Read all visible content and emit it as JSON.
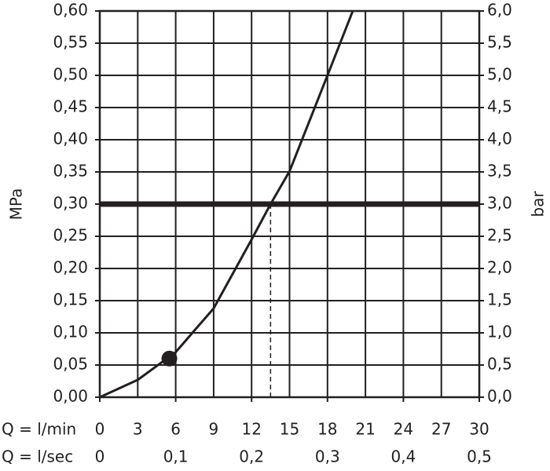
{
  "chart_data": {
    "type": "line",
    "x_label": "Q = l/min",
    "x2_label": "Q = l/sec",
    "y_label": "MPa",
    "y2_label": "bar",
    "x": [
      0,
      3,
      6,
      9,
      12,
      13.5,
      15,
      18,
      20
    ],
    "series": [
      {
        "color": "#231f20",
        "values": [
          0,
          0.027,
          0.07,
          0.138,
          0.245,
          0.3,
          0.351,
          0.5,
          0.6
        ]
      }
    ],
    "xlim": [
      0,
      30
    ],
    "xticks": [
      0,
      3,
      6,
      9,
      12,
      15,
      18,
      21,
      24,
      27,
      30
    ],
    "x2lim": [
      0,
      0.5
    ],
    "x2ticks": [
      0,
      {
        "value": 0.1,
        "label": "0,1"
      },
      {
        "value": 0.2,
        "label": "0,2"
      },
      {
        "value": 0.3,
        "label": "0,3"
      },
      {
        "value": 0.4,
        "label": "0,4"
      },
      {
        "value": 0.5,
        "label": "0,5"
      }
    ],
    "ylim": [
      0,
      0.6
    ],
    "yticks": [
      {
        "value": 0,
        "label": "0,00"
      },
      {
        "value": 0.05,
        "label": "0,05"
      },
      {
        "value": 0.1,
        "label": "0,10"
      },
      {
        "value": 0.15,
        "label": "0,15"
      },
      {
        "value": 0.2,
        "label": "0,20"
      },
      {
        "value": 0.25,
        "label": "0,25"
      },
      {
        "value": 0.3,
        "label": "0,30"
      },
      {
        "value": 0.35,
        "label": "0,35"
      },
      {
        "value": 0.4,
        "label": "0,40"
      },
      {
        "value": 0.45,
        "label": "0,45"
      },
      {
        "value": 0.5,
        "label": "0,50"
      },
      {
        "value": 0.55,
        "label": "0,55"
      },
      {
        "value": 0.6,
        "label": "0,60"
      }
    ],
    "y2lim": [
      0,
      6
    ],
    "y2ticks": [
      {
        "value": 0,
        "label": "0,0"
      },
      {
        "value": 0.5,
        "label": "0,5"
      },
      {
        "value": 1,
        "label": "1,0"
      },
      {
        "value": 1.5,
        "label": "1,5"
      },
      {
        "value": 2,
        "label": "2,0"
      },
      {
        "value": 2.5,
        "label": "2,5"
      },
      {
        "value": 3,
        "label": "3,0"
      },
      {
        "value": 3.5,
        "label": "3,5"
      },
      {
        "value": 4,
        "label": "4,0"
      },
      {
        "value": 4.5,
        "label": "4,5"
      },
      {
        "value": 5,
        "label": "5,0"
      },
      {
        "value": 5.5,
        "label": "5,5"
      },
      {
        "value": 6,
        "label": "6,0"
      }
    ],
    "marker": {
      "x": 5.5,
      "y": 0.06
    },
    "reference_line": {
      "y": 0.3,
      "x": 13.5
    },
    "grid": true
  }
}
